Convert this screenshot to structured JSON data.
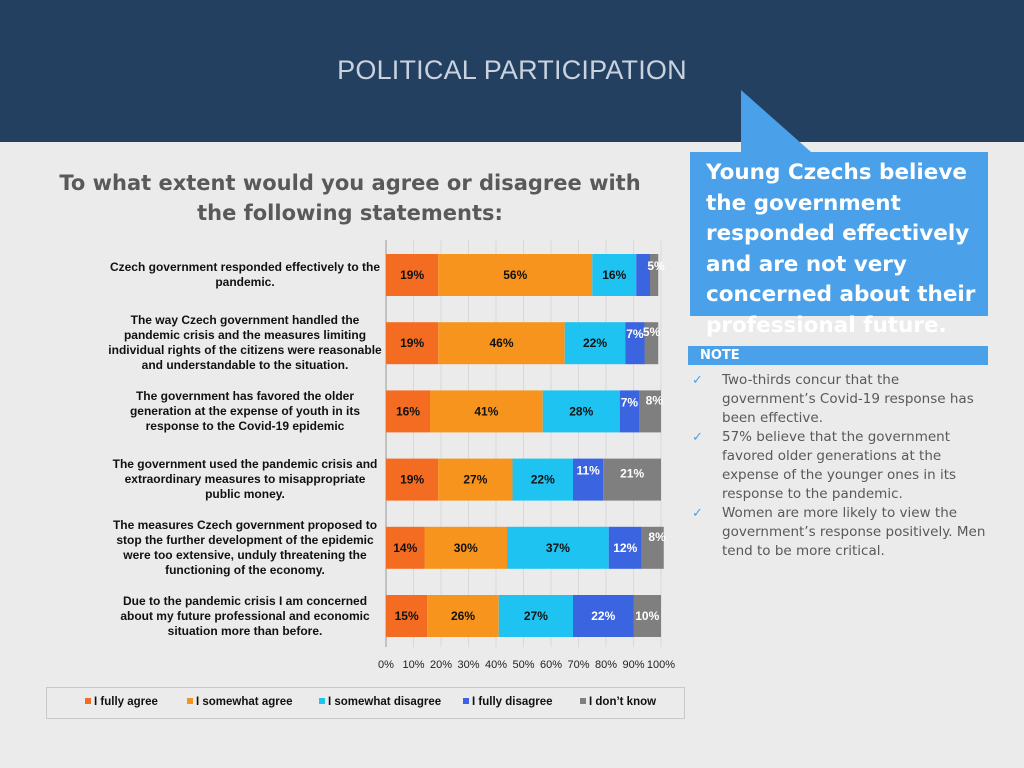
{
  "header": {
    "title": "POLITICAL PARTICIPATION"
  },
  "question": "To what extent would you agree or disagree with the following statements:",
  "callout": {
    "text": "Young Czechs believe the government responded effectively and are not very concerned about their professional future."
  },
  "note": {
    "heading": "NOTE",
    "items": [
      "Two-thirds concur that the government’s Covid-19 response has been effective.",
      "57% believe that the government favored older generations at the expense of the younger ones in its response to the pandemic.",
      "Women are more likely to view the government’s response positively. Men tend to be more critical."
    ]
  },
  "colors": {
    "I fully agree": "#f36c21",
    "I somewhat agree": "#f7941d",
    "I somewhat disagree": "#1ec3f2",
    "I fully disagree": "#3b64e0",
    "I don't know": "#7f7f7f"
  },
  "chart_data": {
    "type": "bar",
    "orientation": "horizontal",
    "stacked": true,
    "categories": [
      "Czech government responded effectively to the pandemic.",
      "The way Czech government handled the pandemic crisis and the measures limiting individual rights of the citizens were reasonable and understandable to the situation.",
      "The government has favored the older generation at the expense of youth in its response to the Covid-19 epidemic",
      "The government used the pandemic crisis and extraordinary measures to misappropriate public money.",
      "The measures Czech government proposed to stop the further development of the epidemic were too extensive, unduly threatening the functioning of the economy.",
      "Due to the pandemic crisis I am concerned about my future professional and economic situation more than before."
    ],
    "series": [
      {
        "name": "I fully agree",
        "values": [
          19,
          19,
          16,
          19,
          14,
          15
        ]
      },
      {
        "name": "I somewhat agree",
        "values": [
          56,
          46,
          41,
          27,
          30,
          26
        ]
      },
      {
        "name": "I somewhat disagree",
        "values": [
          16,
          22,
          28,
          22,
          37,
          27
        ]
      },
      {
        "name": "I fully disagree",
        "values": [
          5,
          7,
          7,
          11,
          12,
          22
        ]
      },
      {
        "name": "I don't know",
        "values": [
          3,
          5,
          8,
          21,
          8,
          10
        ]
      }
    ],
    "data_labels": [
      [
        "19%",
        "56%",
        "16%",
        "5%",
        ""
      ],
      [
        "19%",
        "46%",
        "22%",
        "7%",
        "5%"
      ],
      [
        "16%",
        "41%",
        "28%",
        "7%",
        "8%"
      ],
      [
        "19%",
        "27%",
        "22%",
        "11%",
        "21%"
      ],
      [
        "14%",
        "30%",
        "37%",
        "12%",
        "8%"
      ],
      [
        "15%",
        "26%",
        "27%",
        "22%",
        "10%"
      ]
    ],
    "xlim": [
      0,
      100
    ],
    "x_ticks": [
      "0%",
      "10%",
      "20%",
      "30%",
      "40%",
      "50%",
      "60%",
      "70%",
      "80%",
      "90%",
      "100%"
    ],
    "legend": [
      "I fully agree",
      "I somewhat agree",
      "I somewhat disagree",
      "I fully disagree",
      "I don’t know"
    ],
    "legend_position": "bottom"
  }
}
